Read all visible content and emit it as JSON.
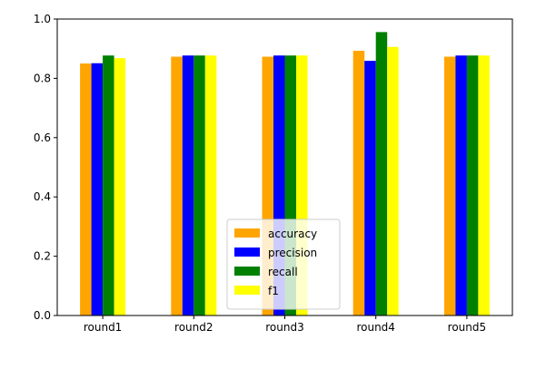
{
  "chart_data": {
    "type": "bar",
    "categories": [
      "round1",
      "round2",
      "round3",
      "round4",
      "round5"
    ],
    "series": [
      {
        "name": "accuracy",
        "color": "#ffa500",
        "values": [
          0.85,
          0.873,
          0.873,
          0.893,
          0.873
        ]
      },
      {
        "name": "precision",
        "color": "#0000ff",
        "values": [
          0.851,
          0.877,
          0.877,
          0.859,
          0.877
        ]
      },
      {
        "name": "recall",
        "color": "#008000",
        "values": [
          0.877,
          0.877,
          0.877,
          0.956,
          0.877
        ]
      },
      {
        "name": "f1",
        "color": "#ffff00",
        "values": [
          0.868,
          0.877,
          0.877,
          0.906,
          0.877
        ]
      }
    ],
    "ylim": [
      0.0,
      1.0
    ],
    "yticks": [
      "0.0",
      "0.2",
      "0.4",
      "0.6",
      "0.8",
      "1.0"
    ],
    "grid": false,
    "legend_position": "lower center",
    "title": "",
    "xlabel": "",
    "ylabel": ""
  }
}
